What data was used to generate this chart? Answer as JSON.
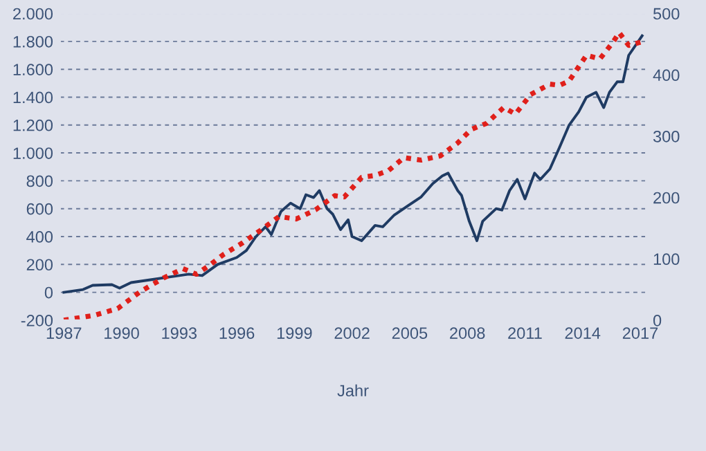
{
  "chart_data": {
    "type": "line",
    "xlabel": "Jahr",
    "xlim": [
      1986.8,
      2017.3
    ],
    "xticks": [
      1987,
      1990,
      1993,
      1996,
      1999,
      2002,
      2005,
      2008,
      2011,
      2014,
      2017
    ],
    "ylim": [
      -200,
      2000
    ],
    "yticks": [
      {
        "value": -200,
        "label": "-200"
      },
      {
        "value": 0,
        "label": "0"
      },
      {
        "value": 200,
        "label": "200"
      },
      {
        "value": 400,
        "label": "400"
      },
      {
        "value": 600,
        "label": "600"
      },
      {
        "value": 800,
        "label": "800"
      },
      {
        "value": 1000,
        "label": "1.000"
      },
      {
        "value": 1200,
        "label": "1.200"
      },
      {
        "value": 1400,
        "label": "1.400"
      },
      {
        "value": 1600,
        "label": "1.600"
      },
      {
        "value": 1800,
        "label": "1.800"
      },
      {
        "value": 2000,
        "label": "2.000"
      }
    ],
    "y2lim": [
      0,
      500
    ],
    "y2ticks": [
      0,
      100,
      200,
      300,
      400,
      500
    ],
    "grid": "y",
    "legend": false,
    "series": [
      {
        "color": "#1f3b63",
        "line_style": "solid",
        "x": [
          1987.0,
          1988.0,
          1988.5,
          1989.5,
          1989.9,
          1990.5,
          1991.5,
          1992.5,
          1993.5,
          1994.2,
          1995.0,
          1996.0,
          1996.5,
          1997.0,
          1997.5,
          1997.8,
          1998.3,
          1998.8,
          1999.3,
          1999.6,
          2000.0,
          2000.3,
          2000.7,
          2001.0,
          2001.4,
          2001.8,
          2002.0,
          2002.5,
          2003.2,
          2003.6,
          2004.2,
          2004.9,
          2005.6,
          2006.2,
          2006.7,
          2007.0,
          2007.5,
          2007.7,
          2008.1,
          2008.5,
          2008.8,
          2009.5,
          2009.8,
          2010.2,
          2010.6,
          2011.0,
          2011.5,
          2011.8,
          2012.3,
          2012.8,
          2013.3,
          2013.8,
          2014.2,
          2014.7,
          2015.1,
          2015.4,
          2015.8,
          2016.1,
          2016.4,
          2017.1
        ],
        "values": [
          0,
          20,
          50,
          55,
          30,
          70,
          90,
          110,
          130,
          120,
          200,
          250,
          300,
          400,
          470,
          415,
          580,
          640,
          600,
          700,
          680,
          730,
          600,
          560,
          450,
          520,
          400,
          370,
          480,
          470,
          555,
          620,
          685,
          780,
          835,
          855,
          730,
          695,
          510,
          370,
          510,
          600,
          590,
          730,
          810,
          670,
          855,
          810,
          885,
          1040,
          1200,
          1295,
          1400,
          1435,
          1325,
          1435,
          1510,
          1510,
          1700,
          1840
        ]
      },
      {
        "color": "#e0201b",
        "axis": "y2",
        "line_style": "dotted",
        "x": [
          1987.0,
          1988.6,
          1989.8,
          1991.0,
          1992.2,
          1993.2,
          1993.9,
          1994.6,
          1995.3,
          1996.3,
          1997.3,
          1998.2,
          1999.1,
          2000.1,
          2001.1,
          2001.6,
          2002.5,
          2003.2,
          2003.9,
          2004.7,
          2005.6,
          2006.6,
          2007.5,
          2008.2,
          2009.0,
          2009.9,
          2010.5,
          2011.3,
          2012.3,
          2012.8,
          2013.3,
          2014.2,
          2014.9,
          2015.6,
          2015.9,
          2016.4,
          2017.1
        ],
        "values": [
          0,
          8,
          19,
          47,
          69,
          84,
          75,
          90,
          107,
          126,
          148,
          169,
          165,
          180,
          203,
          201,
          233,
          236,
          244,
          265,
          261,
          268,
          289,
          311,
          321,
          347,
          336,
          368,
          385,
          383,
          390,
          432,
          426,
          454,
          469,
          448,
          454
        ]
      }
    ]
  }
}
